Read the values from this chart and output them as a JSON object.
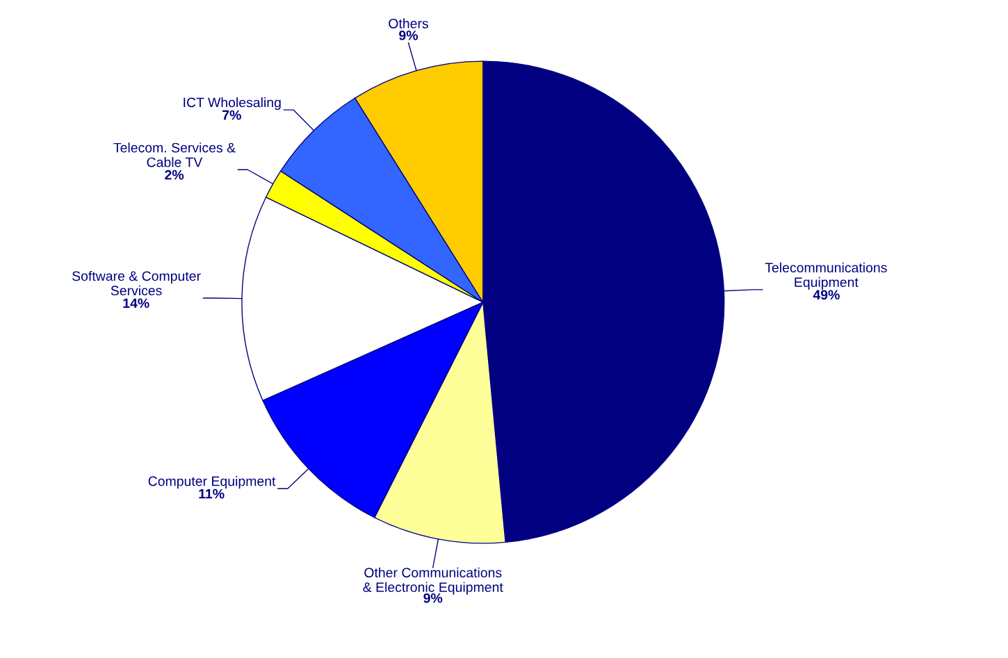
{
  "chart_data": {
    "type": "pie",
    "categories": [
      "Telecommunications\nEquipment",
      "Other Communications\n& Electronic Equipment",
      "Computer Equipment",
      "Software & Computer\nServices",
      "Telecom. Services &\nCable TV",
      "ICT Wholesaling",
      "Others"
    ],
    "values": [
      49,
      9,
      11,
      14,
      2,
      7,
      9
    ],
    "colors": [
      "#000080",
      "#ffff99",
      "#0000ff",
      "#ffffff",
      "#ffff00",
      "#3366ff",
      "#ffcc00"
    ],
    "value_labels": [
      "49%",
      "9%",
      "11%",
      "14%",
      "2%",
      "7%",
      "9%"
    ]
  }
}
